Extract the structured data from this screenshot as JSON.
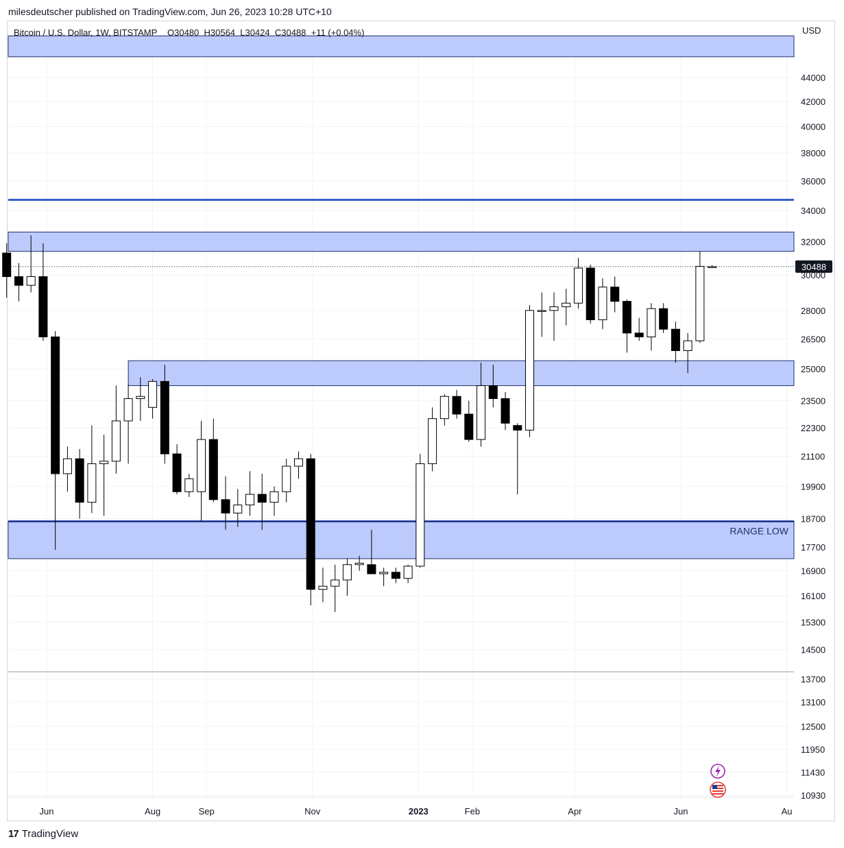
{
  "publisher_line": "milesdeutscher published on TradingView.com, Jun 26, 2023 10:28 UTC+10",
  "brand": {
    "logo": "17",
    "name": "TradingView"
  },
  "chart_data": {
    "type": "candlestick",
    "title": "Bitcoin / U.S. Dollar, 1W, BITSTAMP",
    "ohlc_header": "O30480  H30564  L30424  C30488  +11 (+0.04%)",
    "currency": "USD",
    "last_price_label": "30488",
    "last_price": 30488,
    "scale": "log",
    "y_ticks": [
      44000,
      42000,
      40000,
      38000,
      36000,
      34000,
      32000,
      30000,
      28000,
      26500,
      25000,
      23500,
      22300,
      21100,
      19900,
      18700,
      17700,
      16900,
      16100,
      15300,
      14500,
      13700,
      13100,
      12500,
      11950,
      11430,
      10930
    ],
    "x_ticks": [
      {
        "label": "Jun",
        "date": "2022-06-01",
        "bold": false
      },
      {
        "label": "Aug",
        "date": "2022-08-01",
        "bold": false
      },
      {
        "label": "Sep",
        "date": "2022-09-01",
        "bold": false
      },
      {
        "label": "Nov",
        "date": "2022-11-01",
        "bold": false
      },
      {
        "label": "2023",
        "date": "2023-01-01",
        "bold": true
      },
      {
        "label": "Feb",
        "date": "2023-02-01",
        "bold": false
      },
      {
        "label": "Apr",
        "date": "2023-04-01",
        "bold": false
      },
      {
        "label": "Jun",
        "date": "2023-06-01",
        "bold": false
      },
      {
        "label": "Au",
        "date": "2023-08-01",
        "bold": false
      }
    ],
    "candles": [
      {
        "t": "2022-05-09",
        "o": 31300,
        "h": 31900,
        "l": 28700,
        "c": 29900
      },
      {
        "t": "2022-05-16",
        "o": 29900,
        "h": 30700,
        "l": 28500,
        "c": 29400
      },
      {
        "t": "2022-05-23",
        "o": 29400,
        "h": 32400,
        "l": 29000,
        "c": 29900
      },
      {
        "t": "2022-05-30",
        "o": 29900,
        "h": 31900,
        "l": 26400,
        "c": 26600
      },
      {
        "t": "2022-06-06",
        "o": 26600,
        "h": 26900,
        "l": 17600,
        "c": 20400
      },
      {
        "t": "2022-06-13",
        "o": 20400,
        "h": 21500,
        "l": 19700,
        "c": 21000
      },
      {
        "t": "2022-06-20",
        "o": 21000,
        "h": 21400,
        "l": 18700,
        "c": 19300
      },
      {
        "t": "2022-06-27",
        "o": 19300,
        "h": 22400,
        "l": 18900,
        "c": 20800
      },
      {
        "t": "2022-07-04",
        "o": 20800,
        "h": 22000,
        "l": 18800,
        "c": 20900
      },
      {
        "t": "2022-07-11",
        "o": 20900,
        "h": 24200,
        "l": 20400,
        "c": 22600
      },
      {
        "t": "2022-07-18",
        "o": 22600,
        "h": 24300,
        "l": 20800,
        "c": 23600
      },
      {
        "t": "2022-07-25",
        "o": 23600,
        "h": 24600,
        "l": 22600,
        "c": 23700
      },
      {
        "t": "2022-08-01",
        "o": 23200,
        "h": 24500,
        "l": 22700,
        "c": 24400
      },
      {
        "t": "2022-08-08",
        "o": 24400,
        "h": 25200,
        "l": 20800,
        "c": 21200
      },
      {
        "t": "2022-08-15",
        "o": 21200,
        "h": 21600,
        "l": 19600,
        "c": 19700
      },
      {
        "t": "2022-08-22",
        "o": 19700,
        "h": 20400,
        "l": 19500,
        "c": 20200
      },
      {
        "t": "2022-08-29",
        "o": 19700,
        "h": 22600,
        "l": 18600,
        "c": 21800
      },
      {
        "t": "2022-09-05",
        "o": 21800,
        "h": 22700,
        "l": 19300,
        "c": 19400
      },
      {
        "t": "2022-09-12",
        "o": 19400,
        "h": 20300,
        "l": 18300,
        "c": 18900
      },
      {
        "t": "2022-09-19",
        "o": 18900,
        "h": 19800,
        "l": 18400,
        "c": 19200
      },
      {
        "t": "2022-09-26",
        "o": 19200,
        "h": 20500,
        "l": 18800,
        "c": 19600
      },
      {
        "t": "2022-10-03",
        "o": 19600,
        "h": 20400,
        "l": 18300,
        "c": 19300
      },
      {
        "t": "2022-10-10",
        "o": 19300,
        "h": 19900,
        "l": 18800,
        "c": 19700
      },
      {
        "t": "2022-10-17",
        "o": 19700,
        "h": 21000,
        "l": 19300,
        "c": 20700
      },
      {
        "t": "2022-10-24",
        "o": 20700,
        "h": 21300,
        "l": 20200,
        "c": 21000
      },
      {
        "t": "2022-10-31",
        "o": 21000,
        "h": 21200,
        "l": 15800,
        "c": 16300
      },
      {
        "t": "2022-11-07",
        "o": 16300,
        "h": 17000,
        "l": 15900,
        "c": 16400
      },
      {
        "t": "2022-11-14",
        "o": 16400,
        "h": 17100,
        "l": 15600,
        "c": 16600
      },
      {
        "t": "2022-11-21",
        "o": 16600,
        "h": 17300,
        "l": 16100,
        "c": 17100
      },
      {
        "t": "2022-11-28",
        "o": 17100,
        "h": 17400,
        "l": 16900,
        "c": 17150
      },
      {
        "t": "2022-12-05",
        "o": 17100,
        "h": 18300,
        "l": 16800,
        "c": 16800
      },
      {
        "t": "2022-12-12",
        "o": 16800,
        "h": 17000,
        "l": 16400,
        "c": 16850
      },
      {
        "t": "2022-12-19",
        "o": 16850,
        "h": 17000,
        "l": 16500,
        "c": 16650
      },
      {
        "t": "2022-12-26",
        "o": 16650,
        "h": 17100,
        "l": 16500,
        "c": 17050
      },
      {
        "t": "2023-01-02",
        "o": 17050,
        "h": 21200,
        "l": 17000,
        "c": 20800
      },
      {
        "t": "2023-01-09",
        "o": 20800,
        "h": 23200,
        "l": 20500,
        "c": 22700
      },
      {
        "t": "2023-01-16",
        "o": 22700,
        "h": 23800,
        "l": 22400,
        "c": 23700
      },
      {
        "t": "2023-01-23",
        "o": 23700,
        "h": 24000,
        "l": 22700,
        "c": 22900
      },
      {
        "t": "2023-01-30",
        "o": 22900,
        "h": 23500,
        "l": 21700,
        "c": 21800
      },
      {
        "t": "2023-02-06",
        "o": 21800,
        "h": 25300,
        "l": 21500,
        "c": 24200
      },
      {
        "t": "2023-02-13",
        "o": 24200,
        "h": 25200,
        "l": 23200,
        "c": 23600
      },
      {
        "t": "2023-02-20",
        "o": 23600,
        "h": 23900,
        "l": 22200,
        "c": 22500
      },
      {
        "t": "2023-02-27",
        "o": 22400,
        "h": 22500,
        "l": 19600,
        "c": 22200
      },
      {
        "t": "2023-03-06",
        "o": 22200,
        "h": 28300,
        "l": 21900,
        "c": 28000
      },
      {
        "t": "2023-03-13",
        "o": 28000,
        "h": 29000,
        "l": 26600,
        "c": 28000
      },
      {
        "t": "2023-03-20",
        "o": 28000,
        "h": 29000,
        "l": 26400,
        "c": 28200
      },
      {
        "t": "2023-03-27",
        "o": 28200,
        "h": 29200,
        "l": 27200,
        "c": 28400
      },
      {
        "t": "2023-04-03",
        "o": 28400,
        "h": 31000,
        "l": 28100,
        "c": 30400
      },
      {
        "t": "2023-04-10",
        "o": 30400,
        "h": 30600,
        "l": 27300,
        "c": 27500
      },
      {
        "t": "2023-04-17",
        "o": 27500,
        "h": 29800,
        "l": 27000,
        "c": 29300
      },
      {
        "t": "2023-04-24",
        "o": 29300,
        "h": 29900,
        "l": 27900,
        "c": 28500
      },
      {
        "t": "2023-05-01",
        "o": 28500,
        "h": 28600,
        "l": 25800,
        "c": 26800
      },
      {
        "t": "2023-05-08",
        "o": 26800,
        "h": 27600,
        "l": 26400,
        "c": 26600
      },
      {
        "t": "2023-05-15",
        "o": 26600,
        "h": 28400,
        "l": 25900,
        "c": 28100
      },
      {
        "t": "2023-05-22",
        "o": 28100,
        "h": 28400,
        "l": 26800,
        "c": 27000
      },
      {
        "t": "2023-05-29",
        "o": 27000,
        "h": 27400,
        "l": 25300,
        "c": 25900
      },
      {
        "t": "2023-06-05",
        "o": 25900,
        "h": 26800,
        "l": 24800,
        "c": 26400
      },
      {
        "t": "2023-06-12",
        "o": 26400,
        "h": 31400,
        "l": 26300,
        "c": 30500
      },
      {
        "t": "2023-06-19",
        "o": 30480,
        "h": 30564,
        "l": 30424,
        "c": 30488
      }
    ],
    "zones": [
      {
        "label": "",
        "low": 45800,
        "high": 47700,
        "x_start": "2022-05-01",
        "style": "band"
      },
      {
        "label": "",
        "low": 34700,
        "high": 34700,
        "x_start": "2022-05-01",
        "style": "line"
      },
      {
        "label": "",
        "low": 31400,
        "high": 32600,
        "x_start": "2022-05-01",
        "style": "band"
      },
      {
        "label": "",
        "low": 24200,
        "high": 25400,
        "x_start": "2022-07-18",
        "style": "band"
      },
      {
        "label": "RANGE LOW",
        "low": 17300,
        "high": 18600,
        "x_start": "2022-05-01",
        "style": "band"
      }
    ],
    "colors": {
      "bull_fill": "#ffffff",
      "bear_fill": "#000000",
      "candle_edge": "#000000",
      "zone_fill": "#bccbfb",
      "zone_edge": "#1e2f6b",
      "level_line": "#3660c9",
      "price_tag": "#131722"
    }
  }
}
